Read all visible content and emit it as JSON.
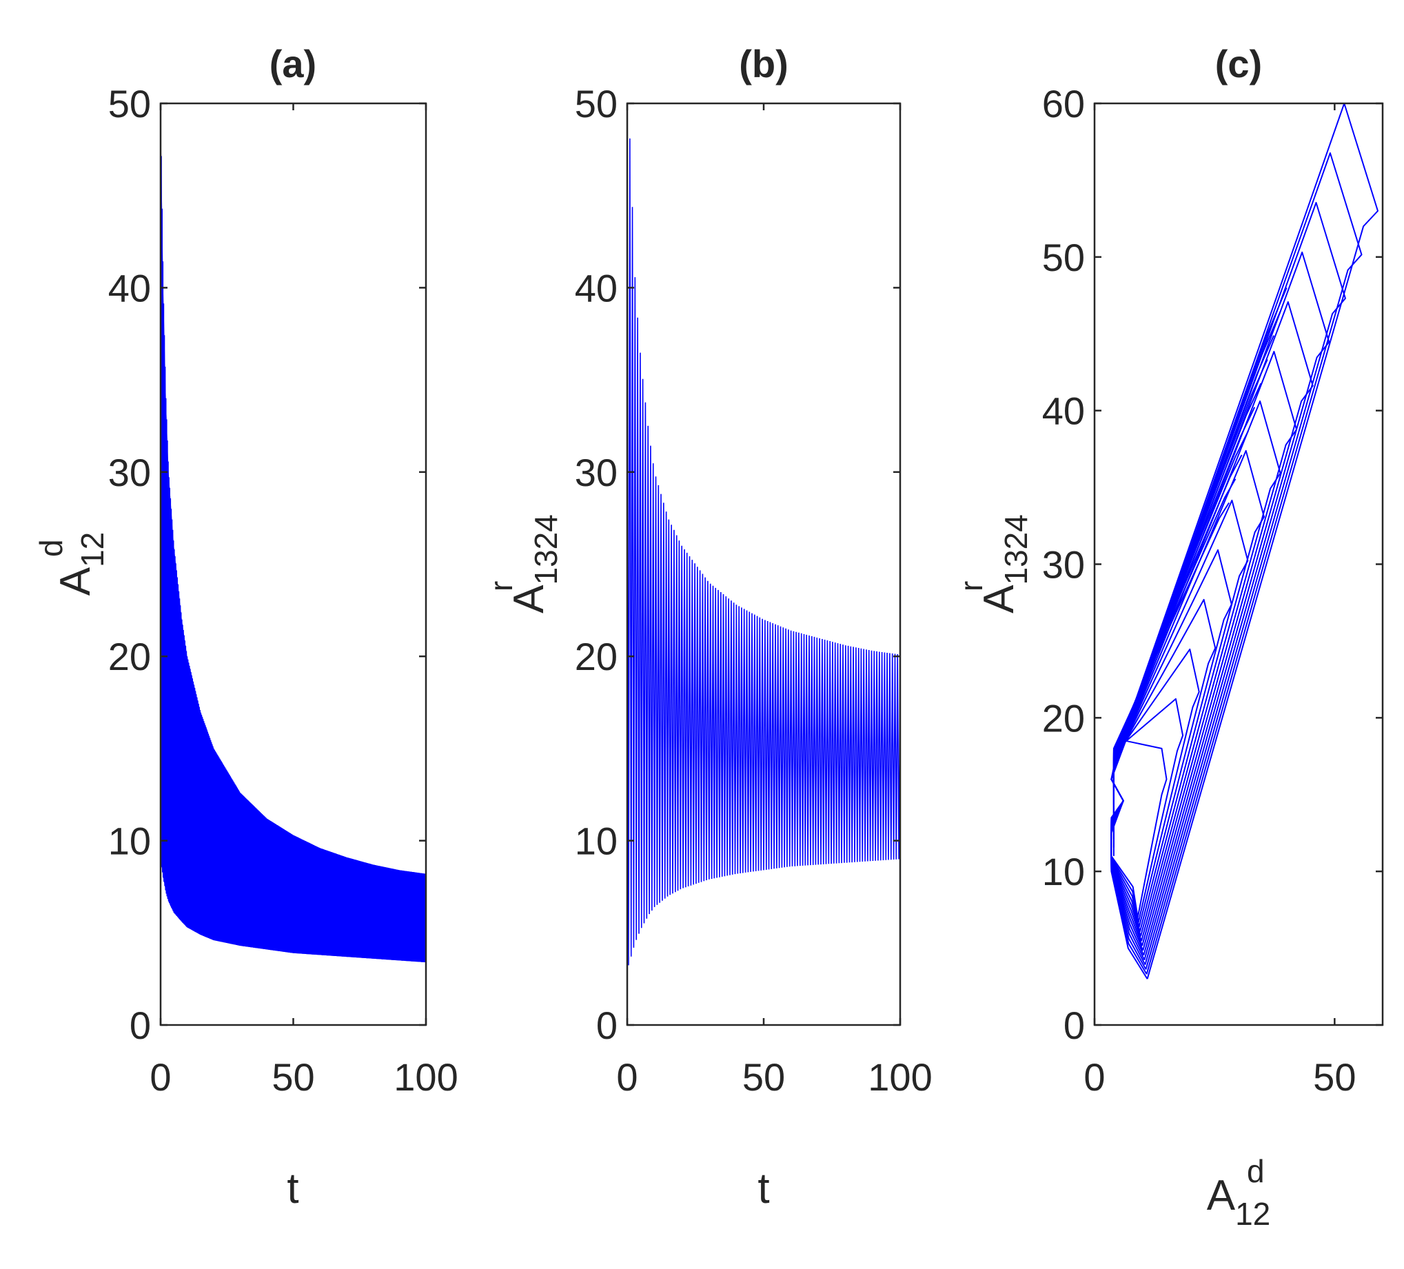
{
  "colors": {
    "line": "#0000ff",
    "axis": "#262626",
    "background": "#ffffff"
  },
  "chart_data": [
    {
      "type": "line",
      "title": "(a)",
      "xlabel": "t",
      "ylabel": {
        "base": "A",
        "sup": "d",
        "sub": "12"
      },
      "xlim": [
        0,
        100
      ],
      "ylim": [
        0,
        50
      ],
      "xticks": [
        "0",
        "50",
        "100"
      ],
      "yticks": [
        "0",
        "10",
        "20",
        "30",
        "40",
        "50"
      ],
      "grid": false,
      "series": [
        {
          "style": "dense-oscillation",
          "t": [
            0,
            1,
            2,
            3,
            5,
            8,
            10,
            15,
            20,
            30,
            40,
            50,
            60,
            70,
            80,
            90,
            100
          ],
          "upper": [
            50,
            40,
            34,
            30,
            26,
            22,
            20,
            17,
            15,
            12.6,
            11.2,
            10.3,
            9.6,
            9.1,
            8.7,
            8.4,
            8.2
          ],
          "lower": [
            9,
            8,
            7.2,
            6.7,
            6.1,
            5.6,
            5.3,
            4.9,
            4.6,
            4.3,
            4.1,
            3.9,
            3.8,
            3.7,
            3.6,
            3.5,
            3.4
          ]
        }
      ]
    },
    {
      "type": "line",
      "title": "(b)",
      "xlabel": "t",
      "ylabel": {
        "base": "A",
        "sup": "r",
        "sub": "1324"
      },
      "xlim": [
        0,
        100
      ],
      "ylim": [
        0,
        50
      ],
      "xticks": [
        "0",
        "50",
        "100"
      ],
      "yticks": [
        "0",
        "10",
        "20",
        "30",
        "40",
        "50"
      ],
      "grid": false,
      "series": [
        {
          "style": "dense-oscillation",
          "t": [
            0,
            1,
            2,
            3,
            5,
            8,
            10,
            15,
            20,
            30,
            40,
            50,
            60,
            70,
            80,
            90,
            100
          ],
          "upper": [
            50,
            48,
            44,
            40,
            36,
            32,
            30,
            27.5,
            26,
            24,
            22.8,
            22,
            21.4,
            21,
            20.6,
            20.3,
            20.1
          ],
          "lower": [
            3,
            3.5,
            4,
            4.5,
            5.2,
            6,
            6.4,
            7,
            7.4,
            7.9,
            8.2,
            8.4,
            8.6,
            8.7,
            8.8,
            8.9,
            9.0
          ]
        }
      ]
    },
    {
      "type": "line",
      "title": "(c)",
      "xlabel": {
        "base": "A",
        "sup": "d",
        "sub": "12"
      },
      "ylabel": {
        "base": "A",
        "sup": "r",
        "sub": "1324"
      },
      "xlim": [
        0,
        60
      ],
      "ylim": [
        0,
        60
      ],
      "xticks": [
        "0",
        "50"
      ],
      "yticks": [
        "0",
        "10",
        "20",
        "30",
        "40",
        "50",
        "60"
      ],
      "grid": false,
      "series": [
        {
          "style": "phase-portrait",
          "outer_points": [
            [
              11,
              3
            ],
            [
              8,
              5
            ],
            [
              3.5,
              10
            ],
            [
              3.5,
              13
            ],
            [
              6,
              14.6
            ],
            [
              3.5,
              16
            ],
            [
              4,
              17
            ],
            [
              52,
              60
            ],
            [
              59,
              53
            ],
            [
              56,
              52
            ]
          ],
          "inner_points": [
            [
              14,
              16
            ],
            [
              16,
              15
            ],
            [
              15,
              17
            ]
          ]
        }
      ]
    }
  ]
}
